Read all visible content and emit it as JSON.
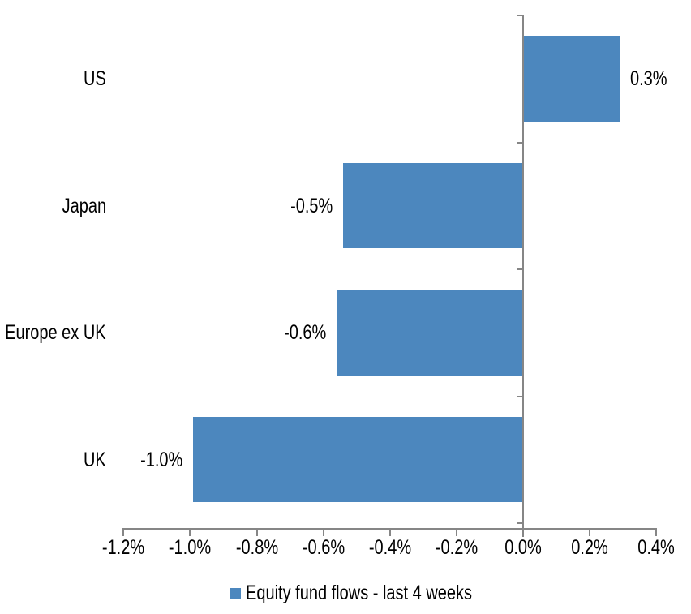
{
  "chart_data": {
    "type": "bar",
    "orientation": "horizontal",
    "title": "",
    "xlabel": "",
    "ylabel": "",
    "categories": [
      "US",
      "Japan",
      "Europe ex UK",
      "UK"
    ],
    "series": [
      {
        "name": "Equity fund flows - last 4 weeks",
        "values": [
          0.3,
          -0.5,
          -0.6,
          -1.0
        ],
        "value_labels": [
          "0.3%",
          "-0.5%",
          "-0.6%",
          "-1.0%"
        ],
        "bar_plot_values": [
          0.29,
          -0.54,
          -0.56,
          -0.99
        ]
      }
    ],
    "xlim": [
      -1.2,
      0.4
    ],
    "x_tick_values": [
      -1.2,
      -1.0,
      -0.8,
      -0.6,
      -0.4,
      -0.2,
      0.0,
      0.2,
      0.4
    ],
    "x_tick_labels": [
      "-1.2%",
      "-1.0%",
      "-0.8%",
      "-0.6%",
      "-0.4%",
      "-0.2%",
      "0.0%",
      "0.2%",
      "0.4%"
    ],
    "grid": false,
    "legend_position": "bottom",
    "data_labels": "outside-end",
    "bar_color": "#4C87BE",
    "axis_color": "#868686",
    "text_color": "#000000",
    "background_color": "#FFFFFF"
  },
  "legend": {
    "label": "Equity fund flows - last 4 weeks",
    "marker": "square-icon"
  }
}
